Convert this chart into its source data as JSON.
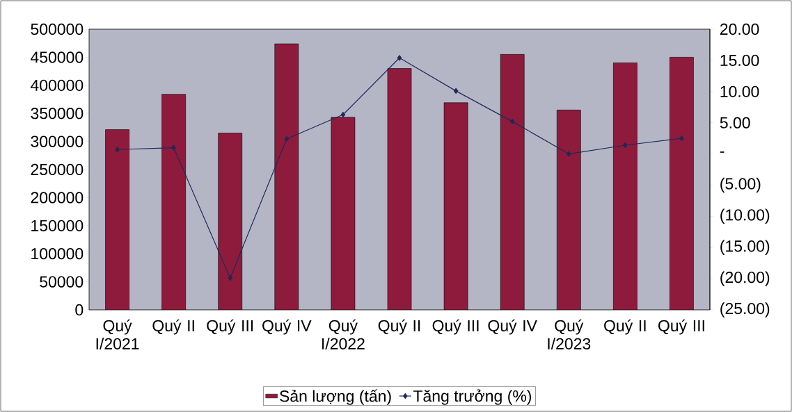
{
  "chart_data": {
    "type": "bar",
    "categories": [
      "Quý I/2021",
      "Quý II",
      "Quý III",
      "Quý IV",
      "Quý I/2022",
      "Quý II",
      "Quý III",
      "Quý IV",
      "Quý I/2023",
      "Quý II",
      "Quý III"
    ],
    "series": [
      {
        "name": "Sản lượng (tấn)",
        "color": "#8e1b3c",
        "values": [
          321000,
          384000,
          315000,
          474000,
          343000,
          430000,
          369000,
          455000,
          356000,
          440000,
          450000
        ]
      },
      {
        "name": "Tăng trưởng (%)",
        "type": "line",
        "axis": "y2",
        "color": "#1f2a5a",
        "marker": "diamond",
        "line_style": "solid",
        "values": [
          0.7,
          1.0,
          -19.9,
          2.4,
          6.3,
          15.4,
          10.1,
          5.2,
          0.0,
          1.4,
          2.5
        ]
      }
    ],
    "ylim": [
      0,
      500000
    ],
    "yticks": [
      0,
      50000,
      100000,
      150000,
      200000,
      250000,
      300000,
      350000,
      400000,
      450000,
      500000
    ],
    "y2lim": [
      -25,
      20
    ],
    "y2ticks": [
      {
        "value": -25,
        "label": "(25.00)"
      },
      {
        "value": -20,
        "label": "(20.00)"
      },
      {
        "value": -15,
        "label": "(15.00)"
      },
      {
        "value": -10,
        "label": "(10.00)"
      },
      {
        "value": -5,
        "label": "(5.00)"
      },
      {
        "value": 0,
        "label": "-"
      },
      {
        "value": 5,
        "label": "5.00"
      },
      {
        "value": 10,
        "label": "10.00"
      },
      {
        "value": 15,
        "label": "15.00"
      },
      {
        "value": 20,
        "label": "20.00"
      }
    ],
    "grid": false,
    "legend": "bottom"
  }
}
